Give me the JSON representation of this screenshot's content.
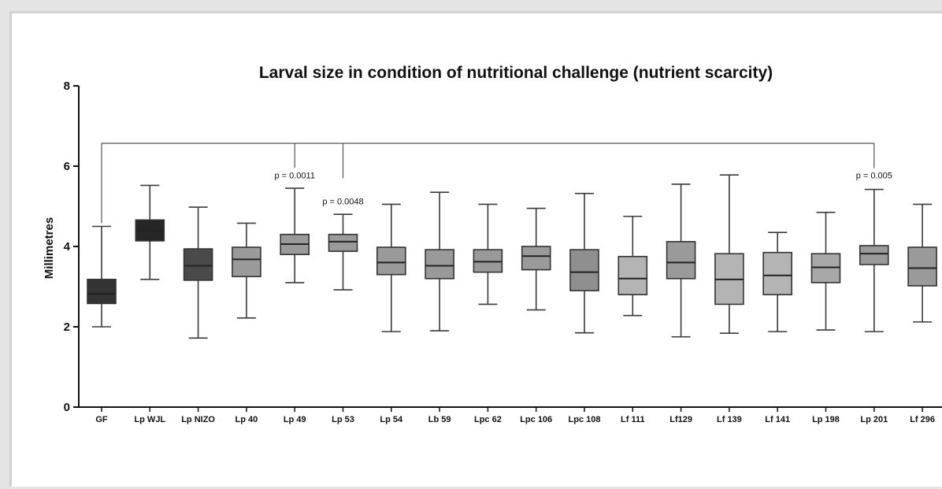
{
  "chart_data": {
    "type": "box",
    "title": "Larval size in condition of nutritional challenge (nutrient scarcity)",
    "xlabel": "",
    "ylabel": "Millimetres",
    "ylim": [
      0,
      8
    ],
    "yticks": [
      "0",
      "2",
      "4",
      "6",
      "8"
    ],
    "grid": false,
    "categories": [
      "GF",
      "Lp WJL",
      "Lp NIZO",
      "Lp 40",
      "Lp 49",
      "Lp 53",
      "Lp 54",
      "Lb 59",
      "Lpc 62",
      "Lpc 106",
      "Lpc 108",
      "Lf 111",
      "Lf129",
      "Lf 139",
      "Lf 141",
      "Lp 198",
      "Lp 201",
      "Lf 296"
    ],
    "boxes": [
      {
        "min": 2.0,
        "q1": 2.58,
        "median": 2.82,
        "q3": 3.18,
        "max": 4.5
      },
      {
        "min": 3.18,
        "q1": 4.14,
        "median": 4.4,
        "q3": 4.66,
        "max": 5.52
      },
      {
        "min": 1.72,
        "q1": 3.16,
        "median": 3.52,
        "q3": 3.94,
        "max": 4.98
      },
      {
        "min": 2.22,
        "q1": 3.25,
        "median": 3.68,
        "q3": 3.98,
        "max": 4.58
      },
      {
        "min": 3.1,
        "q1": 3.8,
        "median": 4.06,
        "q3": 4.3,
        "max": 5.45
      },
      {
        "min": 2.92,
        "q1": 3.88,
        "median": 4.12,
        "q3": 4.3,
        "max": 4.8
      },
      {
        "min": 1.88,
        "q1": 3.3,
        "median": 3.6,
        "q3": 3.98,
        "max": 5.05
      },
      {
        "min": 1.9,
        "q1": 3.2,
        "median": 3.52,
        "q3": 3.92,
        "max": 5.35
      },
      {
        "min": 2.56,
        "q1": 3.36,
        "median": 3.62,
        "q3": 3.92,
        "max": 5.05
      },
      {
        "min": 2.42,
        "q1": 3.42,
        "median": 3.76,
        "q3": 4.0,
        "max": 4.95
      },
      {
        "min": 1.85,
        "q1": 2.9,
        "median": 3.36,
        "q3": 3.92,
        "max": 5.32
      },
      {
        "min": 2.28,
        "q1": 2.8,
        "median": 3.2,
        "q3": 3.75,
        "max": 4.75
      },
      {
        "min": 1.75,
        "q1": 3.2,
        "median": 3.6,
        "q3": 4.12,
        "max": 5.55
      },
      {
        "min": 1.84,
        "q1": 2.56,
        "median": 3.18,
        "q3": 3.82,
        "max": 5.78
      },
      {
        "min": 1.88,
        "q1": 2.8,
        "median": 3.28,
        "q3": 3.85,
        "max": 4.35
      },
      {
        "min": 1.92,
        "q1": 3.1,
        "median": 3.48,
        "q3": 3.82,
        "max": 4.85
      },
      {
        "min": 1.88,
        "q1": 3.55,
        "median": 3.82,
        "q3": 4.02,
        "max": 5.42
      },
      {
        "min": 2.12,
        "q1": 3.02,
        "median": 3.46,
        "q3": 3.98,
        "max": 5.05
      }
    ],
    "box_colors": [
      "#333333",
      "#262626",
      "#4a4a4a",
      "#9a9a9a",
      "#9a9a9a",
      "#9a9a9a",
      "#9a9a9a",
      "#9a9a9a",
      "#9a9a9a",
      "#9a9a9a",
      "#8f8f8f",
      "#b4b4b4",
      "#9a9a9a",
      "#b4b4b4",
      "#b4b4b4",
      "#a8a8a8",
      "#9a9a9a",
      "#9a9a9a"
    ],
    "comparisons": [
      {
        "from": "GF",
        "to": "Lp 49",
        "label": "p = 0.0011"
      },
      {
        "from": "GF",
        "to": "Lp 53",
        "label": "p = 0.0048"
      },
      {
        "from": "GF",
        "to": "Lp 201",
        "label": "p = 0.005"
      }
    ]
  }
}
